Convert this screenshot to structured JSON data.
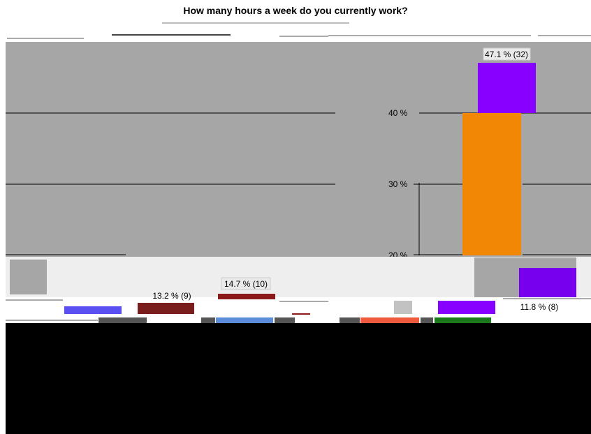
{
  "chart_data": {
    "type": "bar",
    "title": "How many hours a week do you currently work?",
    "y_tick_labels": [
      "20 %",
      "30 %",
      "40 %"
    ],
    "grid": true,
    "colors": {
      "plot_background": "#a6a6a6",
      "lower_band": "#eeeeee",
      "bottom_block": "#000000"
    },
    "series": [
      {
        "color": "#8800ff",
        "value": 47.1,
        "label": "47.1 % (32)"
      },
      {
        "color": "#f28705",
        "value": 40.0,
        "label": ""
      },
      {
        "color": "#8b1a1a",
        "value": 14.7,
        "label": "14.7 % (10)"
      },
      {
        "color": "#7a1d1d",
        "value": 13.2,
        "label": "13.2 % (9)"
      },
      {
        "color": "#7700ee",
        "value": 11.8,
        "label": "11.8 % (8)"
      },
      {
        "color": "#5a4ff0",
        "value": null,
        "label": ""
      },
      {
        "color": "#8800ff",
        "value": null,
        "label": ""
      },
      {
        "color": "#c2c2c2",
        "value": null,
        "label": ""
      }
    ]
  }
}
